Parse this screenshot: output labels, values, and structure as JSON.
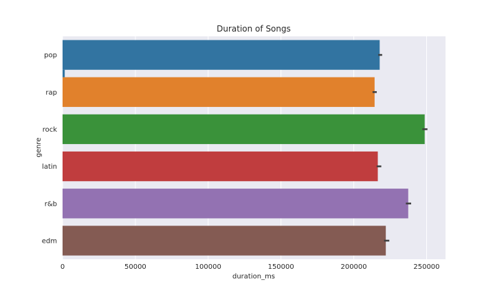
{
  "chart_data": {
    "type": "bar",
    "orientation": "horizontal",
    "title": "Duration of Songs",
    "xlabel": "duration_ms",
    "ylabel": "genre",
    "xlim": [
      0,
      263000
    ],
    "xticks": [
      0,
      50000,
      100000,
      150000,
      200000,
      250000
    ],
    "grid": true,
    "categories": [
      "pop",
      "rap",
      "rock",
      "latin",
      "r&b",
      "edm"
    ],
    "values": [
      217800,
      214300,
      248700,
      216500,
      237400,
      222000
    ],
    "error_bars": [
      [
        216800,
        219500
      ],
      [
        212900,
        215800
      ],
      [
        247100,
        250600
      ],
      [
        215700,
        218900
      ],
      [
        235800,
        239400
      ],
      [
        220800,
        224400
      ]
    ],
    "colors": [
      "#3274a1",
      "#e1812c",
      "#3a923a",
      "#c03d3e",
      "#9372b2",
      "#845b53"
    ],
    "background": "#eaeaf2",
    "extra_mark": {
      "category": "pop",
      "value": 1500,
      "color": "#3274a1"
    }
  }
}
